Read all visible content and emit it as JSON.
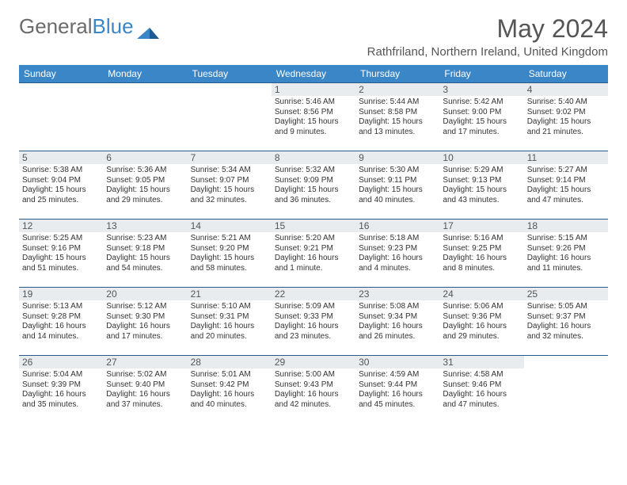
{
  "logo": {
    "part1": "General",
    "part2": "Blue"
  },
  "month_title": "May 2024",
  "location": "Rathfriland, Northern Ireland, United Kingdom",
  "colors": {
    "header_bg": "#3b86c7",
    "header_text": "#ffffff",
    "daynum_bg": "#e9ecef",
    "row_border": "#2a5a8a",
    "body_text": "#333333",
    "title_text": "#555555"
  },
  "weekdays": [
    "Sunday",
    "Monday",
    "Tuesday",
    "Wednesday",
    "Thursday",
    "Friday",
    "Saturday"
  ],
  "weeks": [
    [
      null,
      null,
      null,
      {
        "num": "1",
        "sunrise": "Sunrise: 5:46 AM",
        "sunset": "Sunset: 8:56 PM",
        "daylight": "Daylight: 15 hours and 9 minutes."
      },
      {
        "num": "2",
        "sunrise": "Sunrise: 5:44 AM",
        "sunset": "Sunset: 8:58 PM",
        "daylight": "Daylight: 15 hours and 13 minutes."
      },
      {
        "num": "3",
        "sunrise": "Sunrise: 5:42 AM",
        "sunset": "Sunset: 9:00 PM",
        "daylight": "Daylight: 15 hours and 17 minutes."
      },
      {
        "num": "4",
        "sunrise": "Sunrise: 5:40 AM",
        "sunset": "Sunset: 9:02 PM",
        "daylight": "Daylight: 15 hours and 21 minutes."
      }
    ],
    [
      {
        "num": "5",
        "sunrise": "Sunrise: 5:38 AM",
        "sunset": "Sunset: 9:04 PM",
        "daylight": "Daylight: 15 hours and 25 minutes."
      },
      {
        "num": "6",
        "sunrise": "Sunrise: 5:36 AM",
        "sunset": "Sunset: 9:05 PM",
        "daylight": "Daylight: 15 hours and 29 minutes."
      },
      {
        "num": "7",
        "sunrise": "Sunrise: 5:34 AM",
        "sunset": "Sunset: 9:07 PM",
        "daylight": "Daylight: 15 hours and 32 minutes."
      },
      {
        "num": "8",
        "sunrise": "Sunrise: 5:32 AM",
        "sunset": "Sunset: 9:09 PM",
        "daylight": "Daylight: 15 hours and 36 minutes."
      },
      {
        "num": "9",
        "sunrise": "Sunrise: 5:30 AM",
        "sunset": "Sunset: 9:11 PM",
        "daylight": "Daylight: 15 hours and 40 minutes."
      },
      {
        "num": "10",
        "sunrise": "Sunrise: 5:29 AM",
        "sunset": "Sunset: 9:13 PM",
        "daylight": "Daylight: 15 hours and 43 minutes."
      },
      {
        "num": "11",
        "sunrise": "Sunrise: 5:27 AM",
        "sunset": "Sunset: 9:14 PM",
        "daylight": "Daylight: 15 hours and 47 minutes."
      }
    ],
    [
      {
        "num": "12",
        "sunrise": "Sunrise: 5:25 AM",
        "sunset": "Sunset: 9:16 PM",
        "daylight": "Daylight: 15 hours and 51 minutes."
      },
      {
        "num": "13",
        "sunrise": "Sunrise: 5:23 AM",
        "sunset": "Sunset: 9:18 PM",
        "daylight": "Daylight: 15 hours and 54 minutes."
      },
      {
        "num": "14",
        "sunrise": "Sunrise: 5:21 AM",
        "sunset": "Sunset: 9:20 PM",
        "daylight": "Daylight: 15 hours and 58 minutes."
      },
      {
        "num": "15",
        "sunrise": "Sunrise: 5:20 AM",
        "sunset": "Sunset: 9:21 PM",
        "daylight": "Daylight: 16 hours and 1 minute."
      },
      {
        "num": "16",
        "sunrise": "Sunrise: 5:18 AM",
        "sunset": "Sunset: 9:23 PM",
        "daylight": "Daylight: 16 hours and 4 minutes."
      },
      {
        "num": "17",
        "sunrise": "Sunrise: 5:16 AM",
        "sunset": "Sunset: 9:25 PM",
        "daylight": "Daylight: 16 hours and 8 minutes."
      },
      {
        "num": "18",
        "sunrise": "Sunrise: 5:15 AM",
        "sunset": "Sunset: 9:26 PM",
        "daylight": "Daylight: 16 hours and 11 minutes."
      }
    ],
    [
      {
        "num": "19",
        "sunrise": "Sunrise: 5:13 AM",
        "sunset": "Sunset: 9:28 PM",
        "daylight": "Daylight: 16 hours and 14 minutes."
      },
      {
        "num": "20",
        "sunrise": "Sunrise: 5:12 AM",
        "sunset": "Sunset: 9:30 PM",
        "daylight": "Daylight: 16 hours and 17 minutes."
      },
      {
        "num": "21",
        "sunrise": "Sunrise: 5:10 AM",
        "sunset": "Sunset: 9:31 PM",
        "daylight": "Daylight: 16 hours and 20 minutes."
      },
      {
        "num": "22",
        "sunrise": "Sunrise: 5:09 AM",
        "sunset": "Sunset: 9:33 PM",
        "daylight": "Daylight: 16 hours and 23 minutes."
      },
      {
        "num": "23",
        "sunrise": "Sunrise: 5:08 AM",
        "sunset": "Sunset: 9:34 PM",
        "daylight": "Daylight: 16 hours and 26 minutes."
      },
      {
        "num": "24",
        "sunrise": "Sunrise: 5:06 AM",
        "sunset": "Sunset: 9:36 PM",
        "daylight": "Daylight: 16 hours and 29 minutes."
      },
      {
        "num": "25",
        "sunrise": "Sunrise: 5:05 AM",
        "sunset": "Sunset: 9:37 PM",
        "daylight": "Daylight: 16 hours and 32 minutes."
      }
    ],
    [
      {
        "num": "26",
        "sunrise": "Sunrise: 5:04 AM",
        "sunset": "Sunset: 9:39 PM",
        "daylight": "Daylight: 16 hours and 35 minutes."
      },
      {
        "num": "27",
        "sunrise": "Sunrise: 5:02 AM",
        "sunset": "Sunset: 9:40 PM",
        "daylight": "Daylight: 16 hours and 37 minutes."
      },
      {
        "num": "28",
        "sunrise": "Sunrise: 5:01 AM",
        "sunset": "Sunset: 9:42 PM",
        "daylight": "Daylight: 16 hours and 40 minutes."
      },
      {
        "num": "29",
        "sunrise": "Sunrise: 5:00 AM",
        "sunset": "Sunset: 9:43 PM",
        "daylight": "Daylight: 16 hours and 42 minutes."
      },
      {
        "num": "30",
        "sunrise": "Sunrise: 4:59 AM",
        "sunset": "Sunset: 9:44 PM",
        "daylight": "Daylight: 16 hours and 45 minutes."
      },
      {
        "num": "31",
        "sunrise": "Sunrise: 4:58 AM",
        "sunset": "Sunset: 9:46 PM",
        "daylight": "Daylight: 16 hours and 47 minutes."
      },
      null
    ]
  ]
}
